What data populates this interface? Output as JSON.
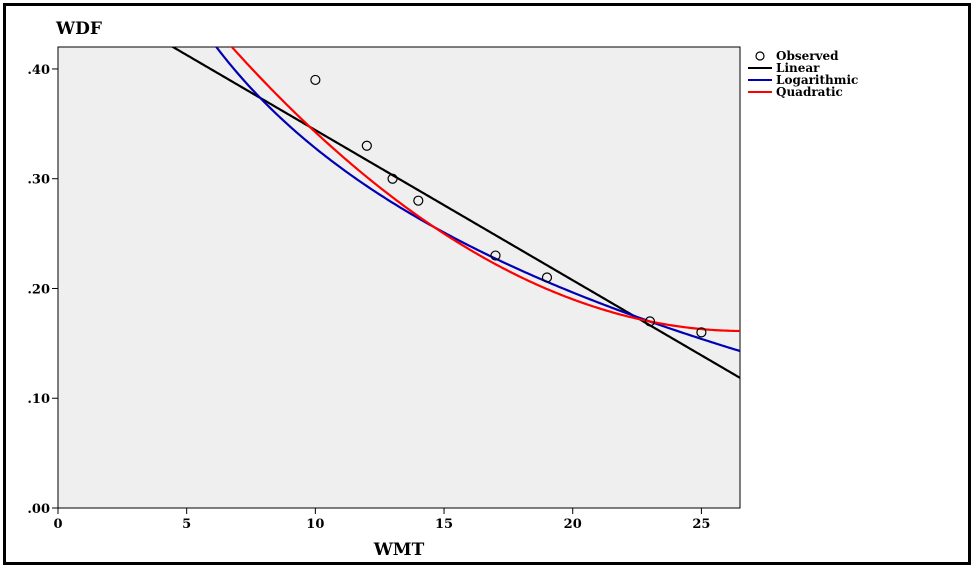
{
  "chart_data": {
    "type": "scatter",
    "title": "",
    "xlabel": "WMT",
    "ylabel": "WDF",
    "xlim": [
      0,
      26.5
    ],
    "ylim": [
      0,
      0.42
    ],
    "x_ticks": [
      0,
      5,
      10,
      15,
      20,
      25
    ],
    "x_tick_labels": [
      "0",
      "5",
      "10",
      "15",
      "20",
      "25"
    ],
    "y_ticks": [
      0.0,
      0.1,
      0.2,
      0.3,
      0.4
    ],
    "y_tick_labels": [
      ".00",
      ".10",
      ".20",
      ".30",
      ".40"
    ],
    "grid": false,
    "legend_position": "top-right",
    "plot_background": "#efefef",
    "observed": {
      "name": "Observed",
      "x": [
        10,
        12,
        13,
        14,
        17,
        19,
        23,
        25
      ],
      "y": [
        0.39,
        0.33,
        0.3,
        0.28,
        0.23,
        0.21,
        0.17,
        0.16
      ]
    },
    "fits": [
      {
        "name": "Linear",
        "color": "#000000",
        "model": "linear",
        "coef": {
          "a": 0.4811,
          "b": -0.01368
        }
      },
      {
        "name": "Logarithmic",
        "color": "#0000b4",
        "model": "logarithmic",
        "coef": {
          "a": 0.76465,
          "b": -0.18969
        }
      },
      {
        "name": "Quadratic",
        "color": "#ff0000",
        "model": "quadratic",
        "coef": {
          "a": 0.62566,
          "b": -0.03486,
          "c": 0.0006542
        }
      }
    ]
  }
}
